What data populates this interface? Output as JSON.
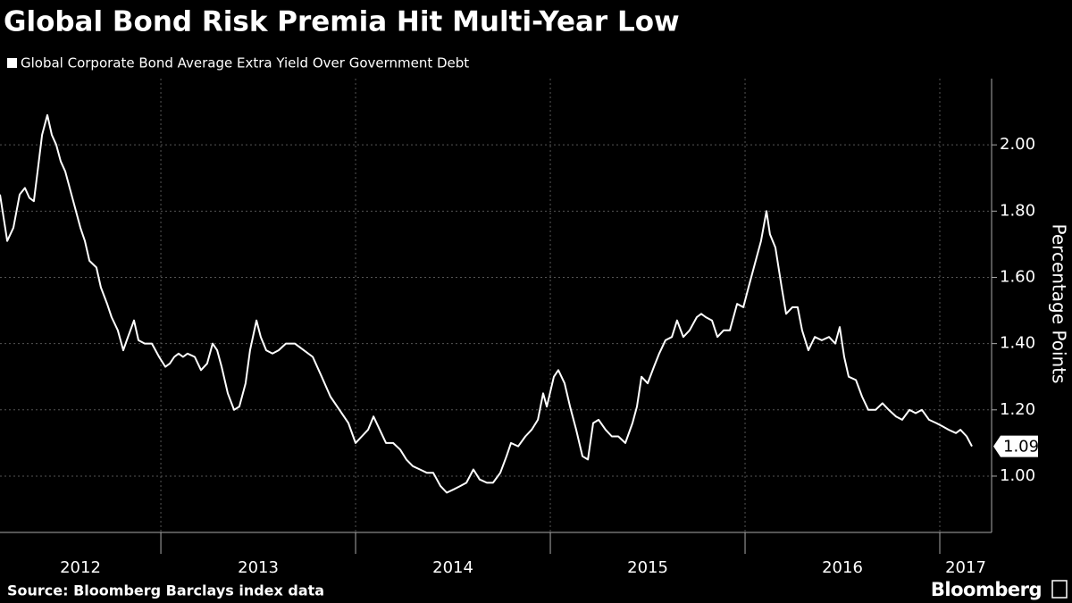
{
  "chart_data": {
    "type": "line",
    "title": "Global Bond Risk Premia Hit Multi-Year Low",
    "y_label": "Percentage Points",
    "source": "Source: Bloomberg Barclays index data",
    "logo": "Bloomberg",
    "x": [
      2012.174,
      2012.211,
      2012.243,
      2012.275,
      2012.302,
      2012.325,
      2012.348,
      2012.367,
      2012.39,
      2012.417,
      2012.44,
      2012.463,
      2012.486,
      2012.509,
      2012.541,
      2012.564,
      2012.587,
      2012.61,
      2012.633,
      2012.669,
      2012.692,
      2012.724,
      2012.747,
      2012.779,
      2012.807,
      2012.825,
      2012.862,
      2012.885,
      2012.917,
      2012.954,
      2012.991,
      2013.023,
      2013.046,
      2013.069,
      2013.091,
      2013.114,
      2013.137,
      2013.174,
      2013.206,
      2013.238,
      2013.266,
      2013.289,
      2013.312,
      2013.344,
      2013.376,
      2013.403,
      2013.435,
      2013.458,
      2013.491,
      2013.513,
      2013.541,
      2013.573,
      2013.605,
      2013.642,
      2013.688,
      2013.734,
      2013.78,
      2013.826,
      2013.871,
      2013.917,
      2013.963,
      2014.0,
      2014.032,
      2014.064,
      2014.092,
      2014.124,
      2014.156,
      2014.193,
      2014.229,
      2014.261,
      2014.294,
      2014.33,
      2014.367,
      2014.399,
      2014.436,
      2014.468,
      2014.504,
      2014.537,
      2014.569,
      2014.605,
      2014.637,
      2014.674,
      2014.706,
      2014.743,
      2014.775,
      2014.798,
      2014.835,
      2014.872,
      2014.904,
      2014.936,
      2014.963,
      2014.982,
      2015.018,
      2015.041,
      2015.073,
      2015.101,
      2015.133,
      2015.165,
      2015.193,
      2015.22,
      2015.248,
      2015.284,
      2015.316,
      2015.349,
      2015.385,
      2015.422,
      2015.445,
      2015.468,
      2015.5,
      2015.532,
      2015.559,
      2015.591,
      2015.624,
      2015.651,
      2015.683,
      2015.715,
      2015.752,
      2015.775,
      2015.798,
      2015.83,
      2015.858,
      2015.89,
      2015.922,
      2015.959,
      2015.991,
      2016.018,
      2016.05,
      2016.082,
      2016.11,
      2016.128,
      2016.156,
      2016.188,
      2016.211,
      2016.243,
      2016.27,
      2016.293,
      2016.325,
      2016.358,
      2016.394,
      2016.431,
      2016.463,
      2016.486,
      2016.509,
      2016.532,
      2016.569,
      2016.601,
      2016.633,
      2016.67,
      2016.706,
      2016.738,
      2016.775,
      2016.807,
      2016.844,
      2016.876,
      2016.908,
      2016.945,
      2016.982,
      2017.014,
      2017.046,
      2017.083,
      2017.106,
      2017.138,
      2017.165
    ],
    "series": [
      {
        "name": "Global Corporate Bond Average Extra Yield Over Government Debt",
        "color": "#ffffff",
        "values": [
          1.85,
          1.71,
          1.75,
          1.85,
          1.87,
          1.84,
          1.83,
          1.92,
          2.03,
          2.09,
          2.03,
          2.0,
          1.95,
          1.92,
          1.85,
          1.8,
          1.75,
          1.71,
          1.65,
          1.63,
          1.57,
          1.52,
          1.48,
          1.44,
          1.38,
          1.41,
          1.47,
          1.41,
          1.4,
          1.4,
          1.36,
          1.33,
          1.34,
          1.36,
          1.37,
          1.36,
          1.37,
          1.36,
          1.32,
          1.34,
          1.4,
          1.38,
          1.33,
          1.25,
          1.2,
          1.21,
          1.28,
          1.38,
          1.47,
          1.42,
          1.38,
          1.37,
          1.38,
          1.4,
          1.4,
          1.38,
          1.36,
          1.3,
          1.24,
          1.2,
          1.16,
          1.1,
          1.12,
          1.14,
          1.18,
          1.14,
          1.1,
          1.1,
          1.08,
          1.05,
          1.03,
          1.02,
          1.01,
          1.01,
          0.97,
          0.95,
          0.96,
          0.97,
          0.98,
          1.02,
          0.99,
          0.98,
          0.98,
          1.01,
          1.06,
          1.1,
          1.09,
          1.12,
          1.14,
          1.17,
          1.25,
          1.21,
          1.3,
          1.32,
          1.28,
          1.21,
          1.14,
          1.06,
          1.05,
          1.16,
          1.17,
          1.14,
          1.12,
          1.12,
          1.1,
          1.16,
          1.21,
          1.3,
          1.28,
          1.33,
          1.37,
          1.41,
          1.42,
          1.47,
          1.42,
          1.44,
          1.48,
          1.49,
          1.48,
          1.47,
          1.42,
          1.44,
          1.44,
          1.52,
          1.51,
          1.57,
          1.64,
          1.71,
          1.8,
          1.73,
          1.69,
          1.57,
          1.49,
          1.51,
          1.51,
          1.44,
          1.38,
          1.42,
          1.41,
          1.42,
          1.4,
          1.45,
          1.36,
          1.3,
          1.29,
          1.24,
          1.2,
          1.2,
          1.22,
          1.2,
          1.18,
          1.17,
          1.2,
          1.19,
          1.2,
          1.17,
          1.16,
          1.15,
          1.14,
          1.13,
          1.14,
          1.12,
          1.09
        ]
      }
    ],
    "xlim": [
      2012.174,
      2017.266
    ],
    "xticks": [
      2013,
      2014,
      2015,
      2016,
      2017
    ],
    "x_labels": [
      "2012",
      "2013",
      "2014",
      "2015",
      "2016",
      "2017"
    ],
    "ylim": [
      0.83,
      2.2
    ],
    "yticks": [
      {
        "value": 1.0,
        "label": "1.00"
      },
      {
        "value": 1.2,
        "label": "1.20"
      },
      {
        "value": 1.4,
        "label": "1.40"
      },
      {
        "value": 1.6,
        "label": "1.60"
      },
      {
        "value": 1.8,
        "label": "1.80"
      },
      {
        "value": 2.0,
        "label": "2.00"
      }
    ],
    "grid": true
  }
}
